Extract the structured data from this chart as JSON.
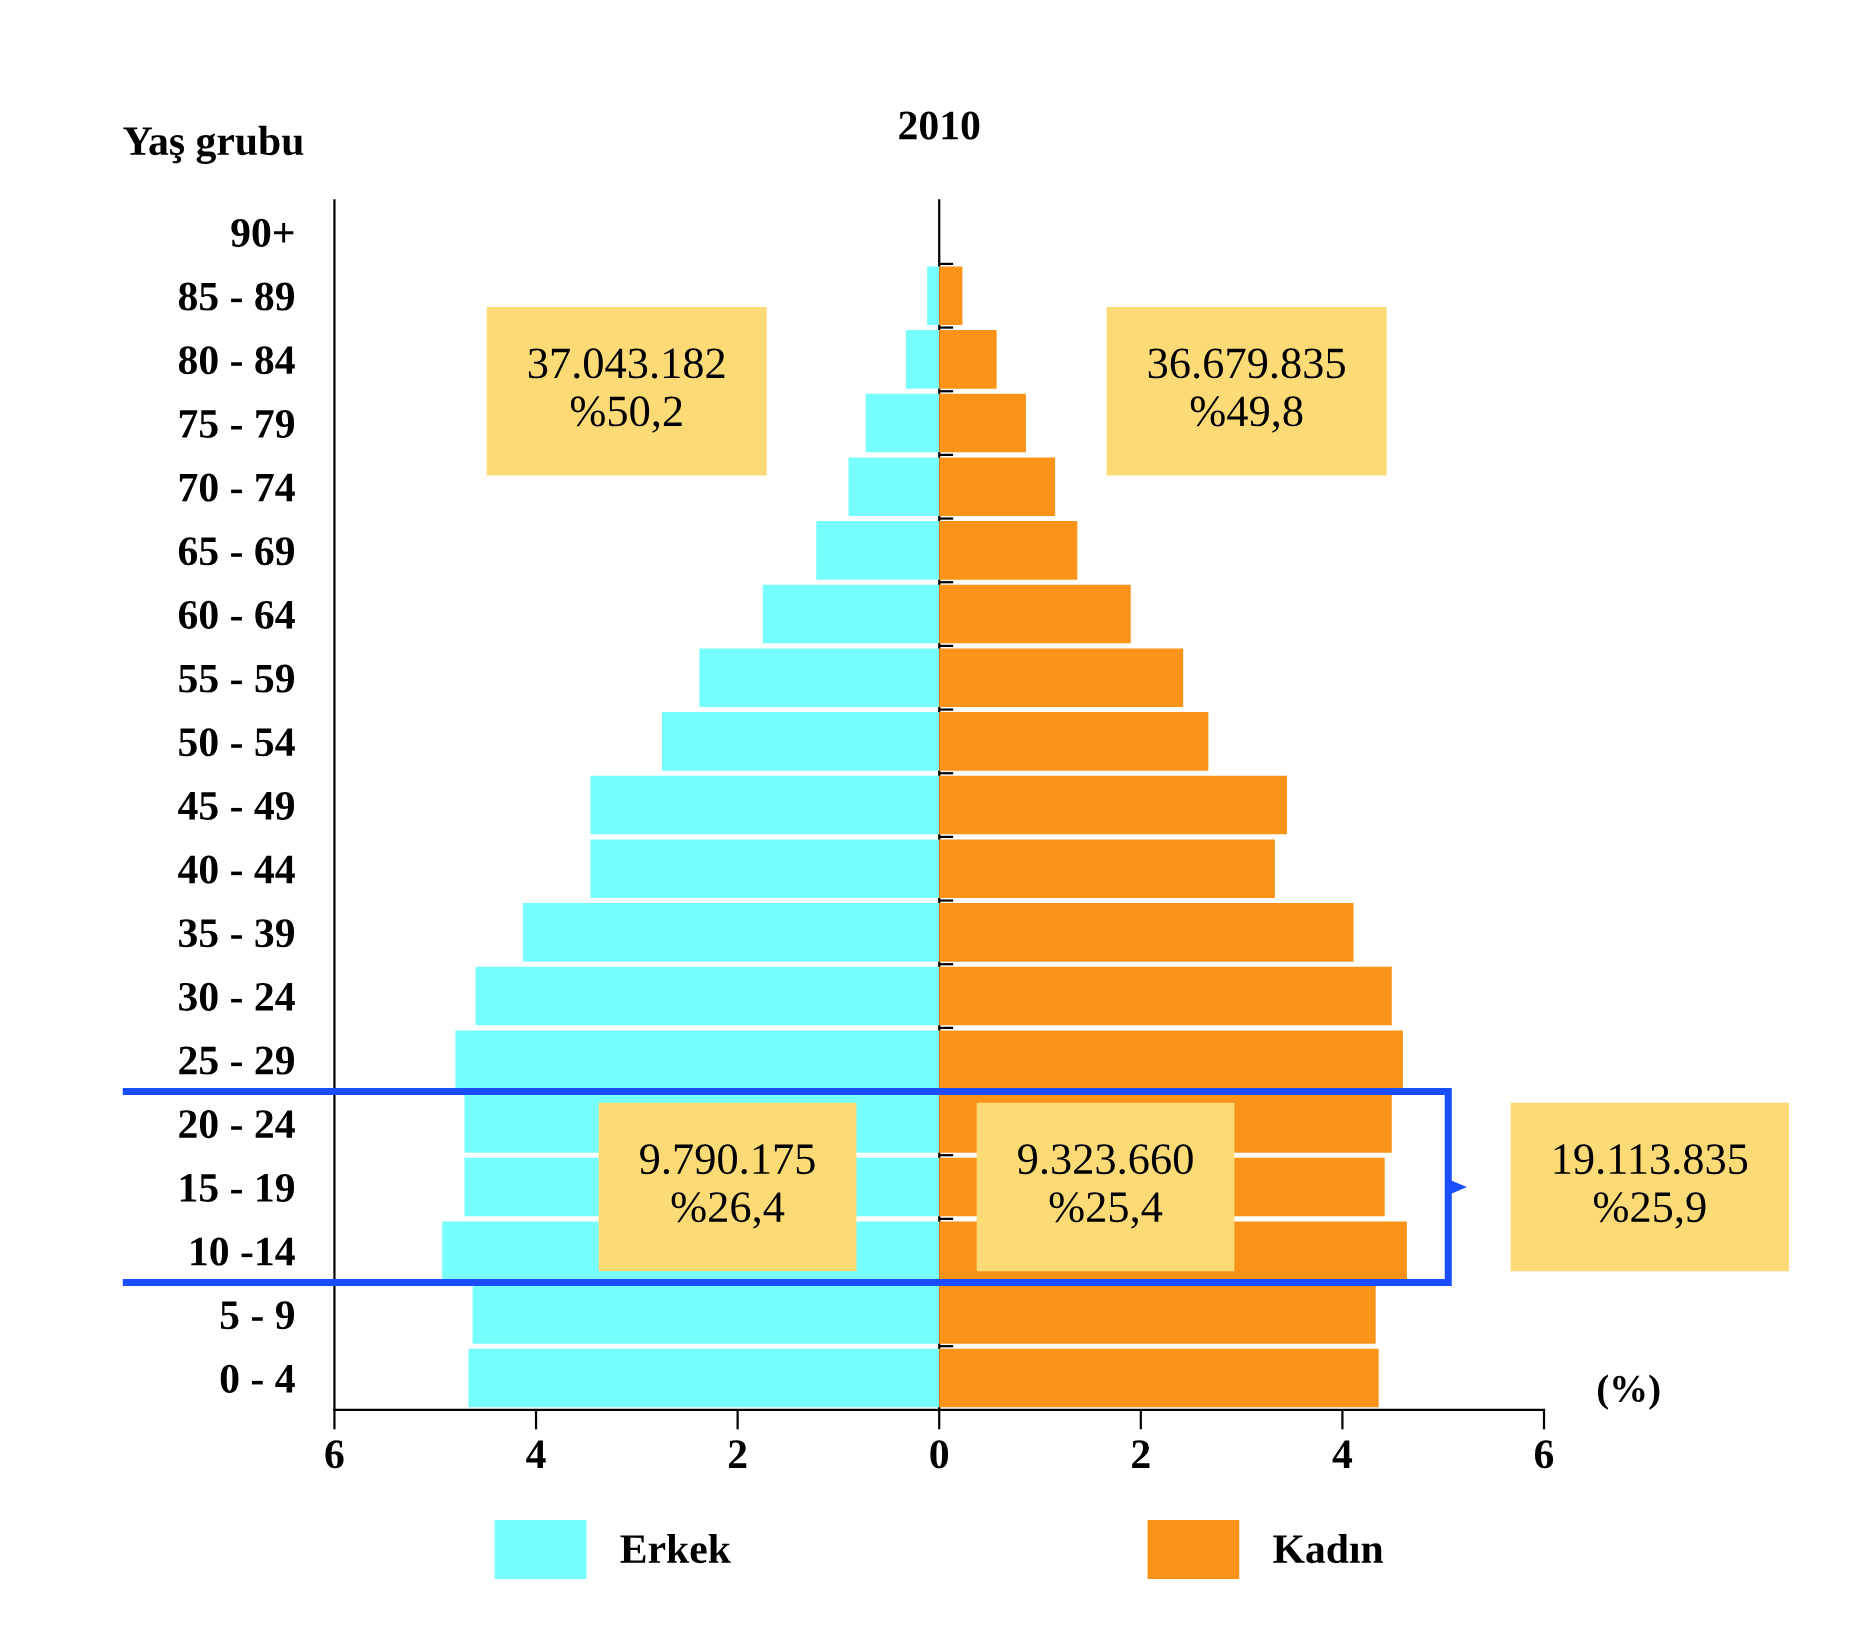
{
  "chart_data": {
    "type": "bar",
    "orientation": "horizontal",
    "title": "2010",
    "ylabel": "Yaş grubu",
    "xlabel": "(%)",
    "categories": [
      "90+",
      "85 - 89",
      "80 - 84",
      "75 - 79",
      "70 - 74",
      "65 - 69",
      "60 - 64",
      "55 - 59",
      "50 - 54",
      "45 - 49",
      "40 - 44",
      "35 - 39",
      "30 - 24",
      "25 - 29",
      "20 - 24",
      "15 - 19",
      "10 -14",
      "5 - 9",
      "0 - 4"
    ],
    "series": [
      {
        "name": "Erkek",
        "color": "#77ffff",
        "values": [
          0,
          -0.12,
          -0.33,
          -0.73,
          -0.9,
          -1.22,
          -1.75,
          -2.38,
          -2.75,
          -3.46,
          -3.46,
          -4.13,
          -4.6,
          -4.8,
          -4.71,
          -4.71,
          -4.93,
          -4.63,
          -4.67
        ]
      },
      {
        "name": "Kadın",
        "color": "#fb9318",
        "values": [
          0,
          0.23,
          0.57,
          0.86,
          1.15,
          1.37,
          1.9,
          2.42,
          2.67,
          3.45,
          3.33,
          4.11,
          4.49,
          4.6,
          4.49,
          4.42,
          4.64,
          4.33,
          4.36
        ]
      }
    ],
    "xlim": [
      -6,
      6
    ],
    "xticks": [
      {
        "value": -6,
        "label": "6"
      },
      {
        "value": -4,
        "label": "4"
      },
      {
        "value": -2,
        "label": "2"
      },
      0,
      2,
      4,
      6
    ],
    "legend": "bottom",
    "stacked": true,
    "annotations": [
      "37.043.182\n%50,2",
      "36.679.835\n%49,8",
      "9.790.175\n%26,4",
      "9.323.660\n%25,4",
      "19.113.835\n%25,9"
    ]
  }
}
